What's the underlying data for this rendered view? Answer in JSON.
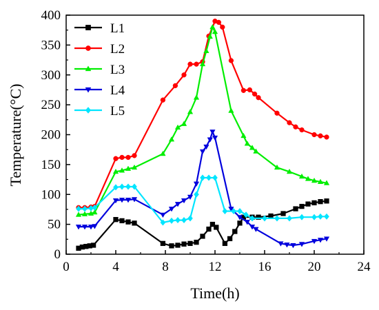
{
  "chart_data": {
    "type": "line",
    "title": "",
    "xlabel": "Time(h)",
    "ylabel": "Temperature(°C)",
    "xlim": [
      0,
      24
    ],
    "ylim": [
      0,
      400
    ],
    "xticks": [
      0,
      4,
      8,
      12,
      16,
      20,
      24
    ],
    "yticks": [
      0,
      50,
      100,
      150,
      200,
      250,
      300,
      350,
      400
    ],
    "grid": false,
    "legend_position": "top-left",
    "series": [
      {
        "name": "L1",
        "color": "#000000",
        "marker": "square",
        "x": [
          1,
          1.3,
          1.6,
          1.9,
          2.2,
          4,
          4.5,
          5,
          5.5,
          7.8,
          8.5,
          9,
          9.5,
          10,
          10.5,
          11,
          11.5,
          11.8,
          12.1,
          12.8,
          13.2,
          13.6,
          14,
          14.3,
          15,
          15.5,
          16.5,
          17.5,
          18.5,
          19,
          19.5,
          20,
          20.5,
          21
        ],
        "y": [
          10,
          12,
          13,
          14,
          15,
          58,
          56,
          54,
          52,
          18,
          14,
          15,
          17,
          18,
          20,
          30,
          42,
          50,
          45,
          18,
          26,
          38,
          52,
          62,
          62,
          62,
          64,
          68,
          76,
          80,
          84,
          86,
          88,
          89
        ]
      },
      {
        "name": "L2",
        "color": "#ff0000",
        "marker": "circle",
        "x": [
          1,
          1.5,
          2,
          2.3,
          4,
          4.5,
          5,
          5.5,
          7.8,
          8.8,
          9.5,
          10,
          10.5,
          11,
          11.5,
          12,
          12.3,
          12.6,
          13.3,
          14.3,
          14.8,
          15.2,
          15.5,
          17,
          18,
          18.5,
          19,
          20,
          20.5,
          21
        ],
        "y": [
          78,
          78,
          79,
          80,
          160,
          162,
          162,
          165,
          258,
          282,
          300,
          318,
          318,
          322,
          365,
          390,
          388,
          380,
          324,
          274,
          275,
          268,
          262,
          236,
          220,
          213,
          208,
          200,
          198,
          196
        ]
      },
      {
        "name": "L3",
        "color": "#00ee00",
        "marker": "triangle-up",
        "x": [
          1,
          1.5,
          2,
          2.3,
          4,
          4.5,
          5,
          5.5,
          7.8,
          8.5,
          9,
          9.5,
          10,
          10.5,
          11,
          11.3,
          11.6,
          11.8,
          12,
          13.3,
          14.3,
          14.6,
          15,
          15.3,
          17,
          18,
          19,
          19.5,
          20,
          20.5,
          21
        ],
        "y": [
          66,
          67,
          68,
          70,
          138,
          140,
          143,
          145,
          168,
          192,
          212,
          218,
          238,
          262,
          318,
          340,
          364,
          380,
          372,
          240,
          198,
          185,
          178,
          172,
          145,
          138,
          130,
          126,
          123,
          121,
          119
        ]
      },
      {
        "name": "L4",
        "color": "#0000dd",
        "marker": "triangle-down",
        "x": [
          1,
          1.5,
          2,
          2.3,
          4,
          4.5,
          5,
          5.5,
          7.8,
          8.5,
          9,
          9.5,
          10,
          10.5,
          11,
          11.3,
          11.6,
          11.8,
          12,
          13.3,
          14,
          14.6,
          15,
          15.3,
          17.3,
          17.8,
          18.3,
          19,
          20,
          20.5,
          21
        ],
        "y": [
          46,
          46,
          46,
          47,
          90,
          91,
          91,
          92,
          66,
          76,
          84,
          90,
          96,
          118,
          172,
          180,
          192,
          205,
          195,
          76,
          62,
          54,
          46,
          42,
          18,
          16,
          15,
          17,
          22,
          24,
          26
        ]
      },
      {
        "name": "L5",
        "color": "#00e5ff",
        "marker": "diamond",
        "x": [
          1,
          1.5,
          2,
          2.3,
          4,
          4.5,
          5,
          5.5,
          7.8,
          8.5,
          9,
          9.5,
          10,
          10.5,
          11,
          11.5,
          12,
          12.8,
          13.5,
          14,
          14.5,
          15,
          16,
          17,
          18,
          19,
          20,
          20.5,
          21
        ],
        "y": [
          76,
          76,
          77,
          78,
          112,
          113,
          113,
          113,
          53,
          56,
          57,
          57,
          60,
          100,
          128,
          128,
          128,
          72,
          72,
          72,
          66,
          60,
          60,
          60,
          60,
          62,
          62,
          63,
          63
        ]
      }
    ]
  }
}
